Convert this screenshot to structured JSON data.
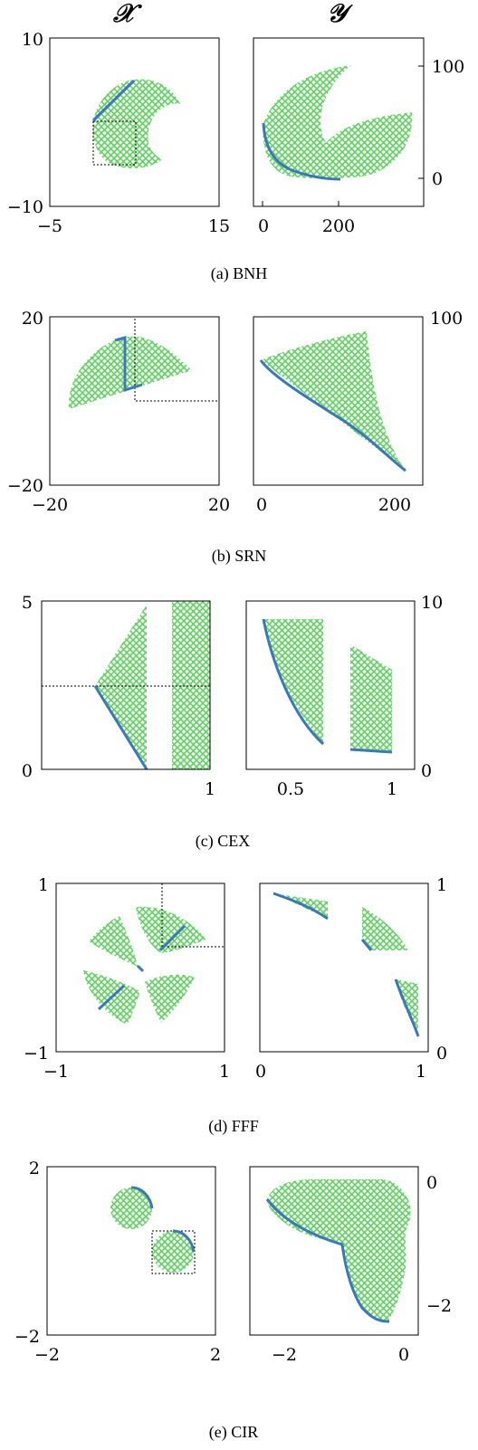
{
  "headers": {
    "left": "𝒳",
    "right": "𝒴"
  },
  "colors": {
    "region_fill": "#5fd35f",
    "curve": "#3a78b8",
    "frame": "#000000",
    "dotted_box": "#000000"
  },
  "chart_data": [
    {
      "id": "bnh",
      "caption": "(a) BNH",
      "type": "area",
      "left": {
        "xlim": [
          -5,
          15
        ],
        "ylim": [
          -10,
          10
        ],
        "xticks": [
          "−5",
          "15"
        ],
        "yticks": [
          "−10",
          "10"
        ],
        "region_shape": "disk-with-bite",
        "front": [
          [
            0.3,
            5.0
          ],
          [
            4.8,
            9.1
          ]
        ],
        "box": [
          [
            0.3,
            5.0
          ],
          [
            5.0,
            0.0
          ]
        ]
      },
      "right": {
        "xlim": [
          -15,
          390
        ],
        "ylim": [
          -30,
          128
        ],
        "xticks": [
          "0",
          "200"
        ],
        "yticks": [
          "0",
          "100"
        ],
        "region_shape": "crescent",
        "front": [
          [
            0,
            51
          ],
          [
            30,
            20
          ],
          [
            80,
            8
          ],
          [
            140,
            2
          ],
          [
            200,
            0
          ]
        ]
      }
    },
    {
      "id": "srn",
      "caption": "(b) SRN",
      "type": "area",
      "left": {
        "xlim": [
          -20,
          20
        ],
        "ylim": [
          -20,
          20
        ],
        "xticks": [
          "−20",
          "20"
        ],
        "yticks": [
          "−20",
          "20"
        ],
        "region_shape": "disk-sector",
        "front": [
          [
            -2.5,
            18.2
          ],
          [
            -0.5,
            18.8
          ],
          [
            -0.5,
            3.8
          ],
          [
            3.5,
            5.2
          ]
        ],
        "box": [
          [
            1.0,
            20.0
          ],
          [
            20.0,
            0.0
          ]
        ]
      },
      "right": {
        "xlim": [
          -10,
          250
        ],
        "ylim": [
          -235,
          100
        ],
        "xticks": [
          "0",
          "200"
        ],
        "yticks": [
          "100"
        ],
        "region_shape": "triangle",
        "front": [
          [
            2,
            25
          ],
          [
            30,
            -15
          ],
          [
            80,
            -75
          ],
          [
            150,
            -150
          ],
          [
            225,
            -222
          ]
        ]
      }
    },
    {
      "id": "cex",
      "caption": "(c) CEX",
      "type": "area",
      "left": {
        "xlim": [
          0.1,
          1.0
        ],
        "ylim": [
          0,
          5
        ],
        "xticks": [
          "1"
        ],
        "yticks": [
          "0",
          "5"
        ],
        "region_shape": "triangle-and-strip",
        "front": [
          [
            0.39,
            2.5
          ],
          [
            0.67,
            0.0
          ]
        ],
        "box": [
          [
            0.1,
            5.0
          ],
          [
            1.0,
            2.5
          ]
        ]
      },
      "right": {
        "xlim": [
          0.3,
          1.05
        ],
        "ylim": [
          0,
          10
        ],
        "xticks": [
          "0.5",
          "1"
        ],
        "yticks": [
          "0",
          "10"
        ],
        "region_shape": "two-strips",
        "front": [
          [
            0.39,
            9.0
          ],
          [
            0.45,
            6.5
          ],
          [
            0.55,
            4.0
          ],
          [
            0.67,
            1.5
          ]
        ],
        "front2": [
          [
            0.83,
            1.3
          ],
          [
            1.0,
            1.1
          ]
        ]
      }
    },
    {
      "id": "fff",
      "caption": "(d) FFF",
      "type": "area",
      "left": {
        "xlim": [
          -1,
          1
        ],
        "ylim": [
          -1,
          1
        ],
        "xticks": [
          "−1",
          "1"
        ],
        "yticks": [
          "−1",
          "1"
        ],
        "region_shape": "four-lenses",
        "front": [
          [
            0.3,
            0.2
          ],
          [
            0.58,
            0.5
          ]
        ],
        "front2": [
          [
            -0.58,
            -0.5
          ],
          [
            -0.3,
            -0.2
          ]
        ],
        "box": [
          [
            0.3,
            1.0
          ],
          [
            1.0,
            0.2
          ]
        ]
      },
      "right": {
        "xlim": [
          -0.02,
          1.0
        ],
        "ylim": [
          -0.02,
          1.0
        ],
        "xticks": [
          "0",
          "1"
        ],
        "yticks": [
          "0",
          "1"
        ],
        "region_shape": "three-pieces",
        "front": [
          [
            0.07,
            0.96
          ],
          [
            0.2,
            0.92
          ],
          [
            0.4,
            0.84
          ]
        ],
        "front2": [
          [
            0.62,
            0.7
          ],
          [
            0.67,
            0.62
          ]
        ],
        "front3": [
          [
            0.85,
            0.42
          ],
          [
            0.9,
            0.3
          ],
          [
            0.97,
            0.14
          ]
        ]
      }
    },
    {
      "id": "cir",
      "caption": "(e) CIR",
      "type": "area",
      "left": {
        "xlim": [
          -2,
          2
        ],
        "ylim": [
          -2,
          2
        ],
        "xticks": [
          "−2",
          "2"
        ],
        "yticks": [
          "−2",
          "2"
        ],
        "region_shape": "two-disks",
        "front": [
          [
            -0.05,
            0.95
          ],
          [
            0.3,
            0.9
          ],
          [
            0.5,
            0.6
          ]
        ],
        "front2": [
          [
            0.95,
            0.05
          ],
          [
            1.25,
            -0.05
          ],
          [
            1.5,
            -0.35
          ]
        ],
        "box": [
          [
            0.5,
            0.0
          ],
          [
            1.5,
            -1.0
          ]
        ]
      },
      "right": {
        "xlim": [
          -2.5,
          0.25
        ],
        "ylim": [
          -2.5,
          0.3
        ],
        "xticks": [
          "−2",
          "0"
        ],
        "yticks": [
          "0",
          "−2"
        ],
        "region_shape": "heart-like",
        "front": [
          [
            -2.3,
            -0.2
          ],
          [
            -2.0,
            -0.5
          ],
          [
            -1.5,
            -0.8
          ],
          [
            -1.0,
            -0.9
          ],
          [
            -0.9,
            -1.4
          ],
          [
            -0.7,
            -2.0
          ],
          [
            -0.4,
            -2.3
          ]
        ]
      }
    }
  ]
}
